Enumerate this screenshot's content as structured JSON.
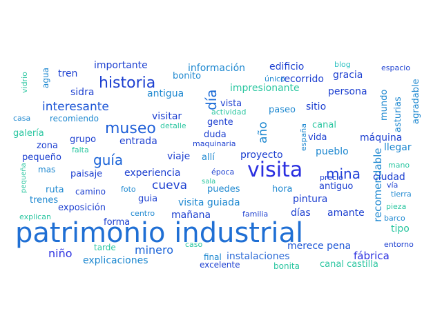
{
  "words": [
    {
      "text": "patrimonio industrial",
      "color": "#1f6fd4"
    },
    {
      "text": "visita",
      "color": "#2a2fe0"
    },
    {
      "text": "museo",
      "color": "#1f5fd8"
    },
    {
      "text": "historia",
      "color": "#1c3fd0"
    },
    {
      "text": "guía",
      "color": "#1a63d8"
    },
    {
      "text": "mina",
      "color": "#2240d8"
    },
    {
      "text": "cueva",
      "color": "#1c3fd0"
    },
    {
      "text": "interesante",
      "color": "#1d56d6"
    },
    {
      "text": "minero",
      "color": "#1a63d8"
    },
    {
      "text": "niño",
      "color": "#2a2fe0"
    },
    {
      "text": "explicaciones",
      "color": "#1e88d0"
    },
    {
      "text": "instalaciones",
      "color": "#2b6ad6"
    },
    {
      "text": "fábrica",
      "color": "#2a2fe0"
    },
    {
      "text": "día",
      "color": "#1a6ad6"
    },
    {
      "text": "año",
      "color": "#1e88d0"
    },
    {
      "text": "recomendable",
      "color": "#1e88d0"
    },
    {
      "text": "experiencia",
      "color": "#1c3fd0"
    },
    {
      "text": "visita guiada",
      "color": "#1e88d0"
    },
    {
      "text": "merece pena",
      "color": "#1d56d6"
    },
    {
      "text": "ciudad",
      "color": "#1c3fd0"
    },
    {
      "text": "llegar",
      "color": "#1e88d0"
    },
    {
      "text": "máquina",
      "color": "#1c3fd0"
    },
    {
      "text": "asturias",
      "color": "#1e88d0"
    },
    {
      "text": "agradable",
      "color": "#1e88d0"
    },
    {
      "text": "mundo",
      "color": "#1e88d0"
    },
    {
      "text": "tren",
      "color": "#1c3fd0"
    },
    {
      "text": "importante",
      "color": "#1c3fd0"
    },
    {
      "text": "información",
      "color": "#1e88d0"
    },
    {
      "text": "edificio",
      "color": "#1c3fd0"
    },
    {
      "text": "blog",
      "color": "#2bc0c0"
    },
    {
      "text": "espacio",
      "color": "#1c3fd0"
    },
    {
      "text": "bonito",
      "color": "#1e88d0"
    },
    {
      "text": "recorrido",
      "color": "#1c3fd0"
    },
    {
      "text": "gracia",
      "color": "#1c3fd0"
    },
    {
      "text": "único",
      "color": "#1e88d0"
    },
    {
      "text": "sidra",
      "color": "#1c3fd0"
    },
    {
      "text": "antigua",
      "color": "#1e88d0"
    },
    {
      "text": "impresionante",
      "color": "#2ac6a0"
    },
    {
      "text": "persona",
      "color": "#1c3fd0"
    },
    {
      "text": "vista",
      "color": "#1c3fd0"
    },
    {
      "text": "sitio",
      "color": "#1c3fd0"
    },
    {
      "text": "paseo",
      "color": "#1e88d0"
    },
    {
      "text": "actividad",
      "color": "#2ac6a0"
    },
    {
      "text": "agua",
      "color": "#1e88d0"
    },
    {
      "text": "vidrio",
      "color": "#2ac6a0"
    },
    {
      "text": "casa",
      "color": "#1e88d0"
    },
    {
      "text": "recomiendo",
      "color": "#1e88d0"
    },
    {
      "text": "visitar",
      "color": "#1c3fd0"
    },
    {
      "text": "gente",
      "color": "#1c3fd0"
    },
    {
      "text": "canal",
      "color": "#2ac6a0"
    },
    {
      "text": "galería",
      "color": "#2ac6a0"
    },
    {
      "text": "detalle",
      "color": "#2ac6a0"
    },
    {
      "text": "grupo",
      "color": "#1c3fd0"
    },
    {
      "text": "entrada",
      "color": "#1c3fd0"
    },
    {
      "text": "duda",
      "color": "#1c3fd0"
    },
    {
      "text": "vida",
      "color": "#1c3fd0"
    },
    {
      "text": "zona",
      "color": "#1c3fd0"
    },
    {
      "text": "falta",
      "color": "#2ac6a0"
    },
    {
      "text": "maquinaria",
      "color": "#1c3fd0"
    },
    {
      "text": "españa",
      "color": "#1e88d0"
    },
    {
      "text": "proyecto",
      "color": "#1c3fd0"
    },
    {
      "text": "pueblo",
      "color": "#1e88d0"
    },
    {
      "text": "pequeño",
      "color": "#1c3fd0"
    },
    {
      "text": "viaje",
      "color": "#1c3fd0"
    },
    {
      "text": "allí",
      "color": "#1e88d0"
    },
    {
      "text": "mas",
      "color": "#1e88d0"
    },
    {
      "text": "paisaje",
      "color": "#1c3fd0"
    },
    {
      "text": "época",
      "color": "#1c3fd0"
    },
    {
      "text": "mano",
      "color": "#2ac6a0"
    },
    {
      "text": "precio",
      "color": "#1c3fd0"
    },
    {
      "text": "pequeña",
      "color": "#2ac6a0"
    },
    {
      "text": "sala",
      "color": "#2ac6a0"
    },
    {
      "text": "vía",
      "color": "#1c3fd0"
    },
    {
      "text": "antiguo",
      "color": "#1c3fd0"
    },
    {
      "text": "tierra",
      "color": "#1e88d0"
    },
    {
      "text": "ruta",
      "color": "#1e88d0"
    },
    {
      "text": "camino",
      "color": "#1c3fd0"
    },
    {
      "text": "foto",
      "color": "#1e88d0"
    },
    {
      "text": "puedes",
      "color": "#1e88d0"
    },
    {
      "text": "hora",
      "color": "#1e88d0"
    },
    {
      "text": "trenes",
      "color": "#1e88d0"
    },
    {
      "text": "pintura",
      "color": "#1c3fd0"
    },
    {
      "text": "pieza",
      "color": "#2ac6a0"
    },
    {
      "text": "exposición",
      "color": "#1c3fd0"
    },
    {
      "text": "mañana",
      "color": "#1c3fd0"
    },
    {
      "text": "días",
      "color": "#1c3fd0"
    },
    {
      "text": "amante",
      "color": "#1c3fd0"
    },
    {
      "text": "barco",
      "color": "#1e88d0"
    },
    {
      "text": "explican",
      "color": "#2ac6a0"
    },
    {
      "text": "centro",
      "color": "#1e88d0"
    },
    {
      "text": "familia",
      "color": "#1c3fd0"
    },
    {
      "text": "tipo",
      "color": "#2ac6a0"
    },
    {
      "text": "forma",
      "color": "#1c3fd0"
    },
    {
      "text": "caso",
      "color": "#2ac6a0"
    },
    {
      "text": "tarde",
      "color": "#2ac6a0"
    },
    {
      "text": "entorno",
      "color": "#1c3fd0"
    },
    {
      "text": "final",
      "color": "#1e88d0"
    },
    {
      "text": "excelente",
      "color": "#1c3fd0"
    },
    {
      "text": "bonita",
      "color": "#2ac6a0"
    },
    {
      "text": "canal castilla",
      "color": "#2ac6a0"
    },
    {
      "text": "guia",
      "color": "#1c3fd0"
    }
  ]
}
